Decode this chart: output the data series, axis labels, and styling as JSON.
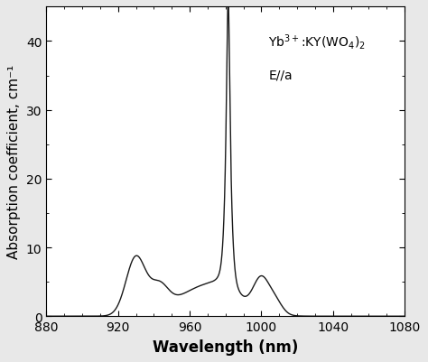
{
  "xlim": [
    880,
    1080
  ],
  "ylim": [
    0,
    45
  ],
  "xticks": [
    880,
    920,
    960,
    1000,
    1040,
    1080
  ],
  "yticks": [
    0,
    10,
    20,
    30,
    40
  ],
  "xlabel": "Wavelength (nm)",
  "ylabel": "Absorption coefficient, cm⁻¹",
  "annotation_line1": "Yb$^{3+}$:KY(WO$_4$)$_2$",
  "annotation_line2": "E//a",
  "line_color": "#1a1a1a",
  "line_width": 1.0,
  "background_color": "#e8e8e8",
  "plot_bg_color": "#ffffff",
  "font_size_label": 12,
  "font_size_tick": 10,
  "font_size_annot": 10
}
